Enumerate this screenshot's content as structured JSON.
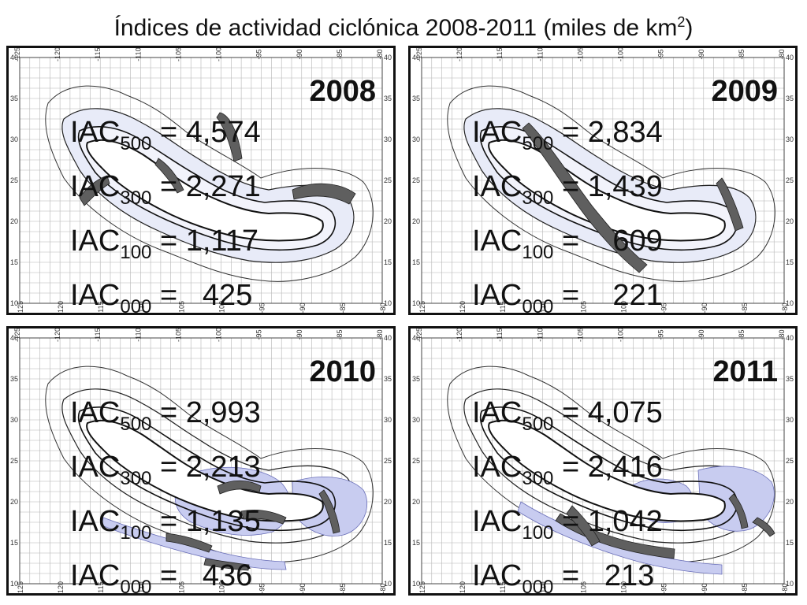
{
  "title": {
    "text": "Índices de actividad ciclónica 2008-2011 (miles de km",
    "superscript": "2",
    "suffix": ")"
  },
  "axes": {
    "lon_labels": [
      "-125",
      "-120",
      "-115",
      "-110",
      "-105",
      "-100",
      "-95",
      "-90",
      "-85",
      "-80"
    ],
    "lat_labels": [
      "40",
      "35",
      "30",
      "25",
      "20",
      "15",
      "10"
    ]
  },
  "panels": [
    {
      "year": "2008",
      "rows": [
        {
          "sub": "500",
          "sep": " = ",
          "val": "4,574"
        },
        {
          "sub": "300",
          "sep": " = ",
          "val": "2,271"
        },
        {
          "sub": "100",
          "sep": " = ",
          "val": "1,117"
        },
        {
          "sub": "000",
          "sep": " = ",
          "val": "425"
        }
      ]
    },
    {
      "year": "2009",
      "rows": [
        {
          "sub": "500",
          "sep": " = ",
          "val": "2,834"
        },
        {
          "sub": "300",
          "sep": " = ",
          "val": "1,439"
        },
        {
          "sub": "100",
          "sep": " = ",
          "val": "609"
        },
        {
          "sub": "000",
          "sep": " = ",
          "val": "221"
        }
      ]
    },
    {
      "year": "2010",
      "rows": [
        {
          "sub": "500",
          "sep": " = ",
          "val": "2,993"
        },
        {
          "sub": "300",
          "sep": " = ",
          "val": "2,213"
        },
        {
          "sub": "100",
          "sep": " = ",
          "val": "1,135"
        },
        {
          "sub": "000",
          "sep": " = ",
          "val": "436"
        }
      ]
    },
    {
      "year": "2011",
      "rows": [
        {
          "sub": "500",
          "sep": " = ",
          "val": "4,075"
        },
        {
          "sub": "300",
          "sep": " = ",
          "val": "2,416"
        },
        {
          "sub": "100",
          "sep": " = ",
          "val": "1,042"
        },
        {
          "sub": "000",
          "sep": " = ",
          "val": "213"
        }
      ]
    }
  ],
  "colors": {
    "fill_light": "#e8ebf8",
    "fill_medium": "#c8ccf0",
    "fill_dark": "#5f5f5f",
    "grid": "#b5b5b5",
    "outline": "#111111"
  }
}
